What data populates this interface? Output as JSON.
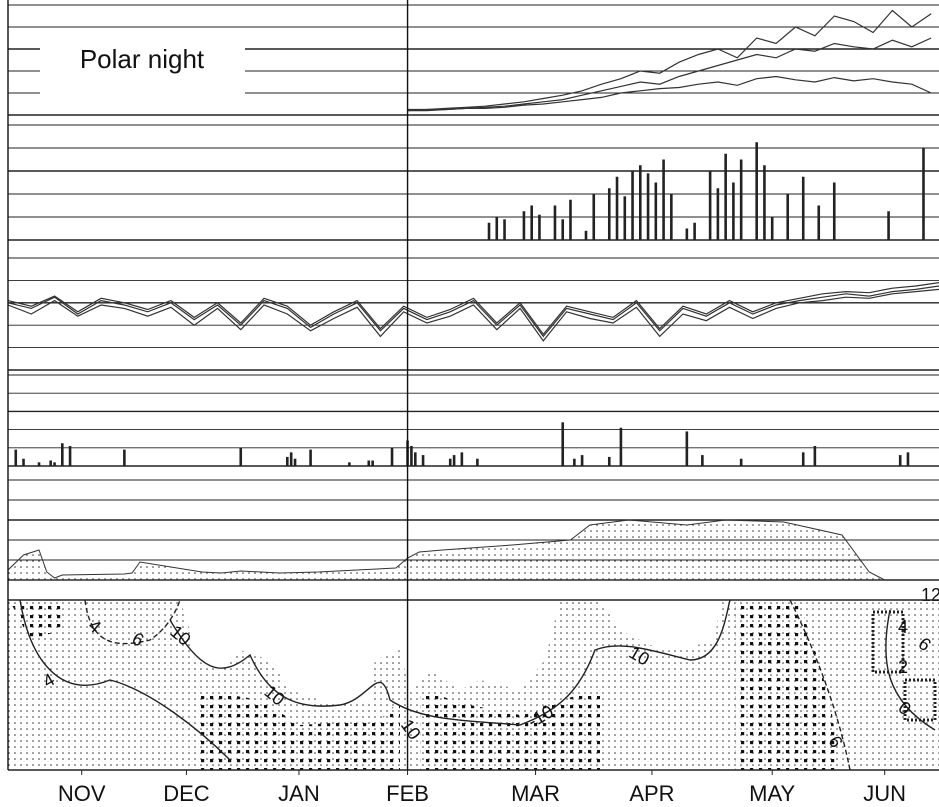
{
  "chart_data": [
    {
      "type": "line",
      "title": "Polar night",
      "xlim": [
        0,
        240
      ],
      "ylim": [
        0,
        100
      ],
      "yticks": [
        0,
        20,
        40,
        60,
        80,
        100
      ],
      "x": [
        103,
        108,
        113,
        118,
        123,
        128,
        133,
        138,
        143,
        148,
        153,
        158,
        163,
        168,
        173,
        178,
        183,
        188,
        193,
        198,
        203,
        208,
        213,
        218,
        223,
        228,
        233,
        238
      ],
      "series": [
        {
          "color": "#333333",
          "values": [
            5,
            5,
            6,
            7,
            8,
            10,
            12,
            15,
            18,
            22,
            28,
            33,
            40,
            38,
            48,
            55,
            60,
            52,
            70,
            65,
            80,
            72,
            90,
            85,
            75,
            95,
            80,
            92
          ]
        },
        {
          "color": "#333333",
          "values": [
            4,
            5,
            5,
            6,
            7,
            8,
            10,
            12,
            14,
            18,
            22,
            26,
            30,
            28,
            35,
            40,
            45,
            50,
            55,
            52,
            60,
            58,
            65,
            62,
            60,
            68,
            62,
            70
          ]
        },
        {
          "color": "#333333",
          "values": [
            4,
            4,
            5,
            6,
            6,
            7,
            9,
            10,
            12,
            14,
            16,
            20,
            22,
            24,
            25,
            28,
            30,
            27,
            33,
            35,
            32,
            30,
            34,
            31,
            33,
            30,
            28,
            20
          ]
        }
      ]
    },
    {
      "type": "bar",
      "xlim": [
        0,
        240
      ],
      "ylim": [
        0,
        100
      ],
      "yticks": [
        0,
        20,
        40,
        60,
        80,
        100
      ],
      "color": "#222222",
      "x": [
        124,
        126,
        128,
        133,
        135,
        137,
        141,
        143,
        145,
        149,
        151,
        155,
        157,
        159,
        161,
        163,
        165,
        167,
        169,
        171,
        175,
        177,
        181,
        183,
        185,
        187,
        189,
        193,
        195,
        197,
        201,
        205,
        209,
        213,
        227,
        236
      ],
      "values": [
        15,
        20,
        18,
        25,
        30,
        22,
        30,
        18,
        35,
        8,
        40,
        45,
        55,
        38,
        60,
        65,
        58,
        50,
        70,
        40,
        10,
        15,
        60,
        45,
        75,
        50,
        70,
        85,
        65,
        20,
        40,
        55,
        30,
        50,
        25,
        80
      ]
    },
    {
      "type": "line",
      "xlim": [
        0,
        240
      ],
      "ylim": [
        0,
        100
      ],
      "yticks": [
        0,
        20,
        40,
        60,
        80,
        100
      ],
      "x": [
        0,
        6,
        12,
        18,
        24,
        30,
        36,
        42,
        48,
        54,
        60,
        66,
        72,
        78,
        84,
        90,
        96,
        102,
        108,
        114,
        120,
        126,
        132,
        138,
        144,
        150,
        156,
        162,
        168,
        174,
        180,
        186,
        192,
        198,
        204,
        210,
        216,
        222,
        228,
        234,
        240
      ],
      "series": [
        {
          "color": "#333333",
          "values": [
            60,
            55,
            65,
            50,
            62,
            58,
            52,
            60,
            45,
            58,
            40,
            62,
            55,
            38,
            50,
            60,
            35,
            55,
            45,
            52,
            62,
            40,
            58,
            30,
            55,
            50,
            45,
            60,
            35,
            55,
            48,
            60,
            50,
            58,
            62,
            65,
            68,
            66,
            70,
            72,
            75
          ]
        },
        {
          "color": "#333333",
          "values": [
            58,
            50,
            62,
            48,
            58,
            55,
            48,
            56,
            40,
            55,
            36,
            58,
            50,
            35,
            46,
            56,
            30,
            52,
            42,
            48,
            58,
            36,
            55,
            26,
            52,
            46,
            42,
            56,
            30,
            50,
            44,
            56,
            46,
            55,
            60,
            62,
            65,
            64,
            68,
            70,
            72
          ]
        },
        {
          "color": "#333333",
          "values": [
            62,
            57,
            66,
            52,
            64,
            60,
            54,
            62,
            47,
            60,
            42,
            64,
            57,
            40,
            52,
            62,
            37,
            57,
            47,
            54,
            64,
            42,
            60,
            32,
            57,
            52,
            47,
            62,
            37,
            57,
            50,
            62,
            52,
            60,
            64,
            68,
            70,
            69,
            73,
            75,
            78
          ]
        }
      ]
    },
    {
      "type": "bar",
      "xlim": [
        0,
        240
      ],
      "ylim": [
        0,
        100
      ],
      "yticks": [
        0,
        20,
        40,
        60,
        80,
        100
      ],
      "color": "#222222",
      "x": [
        2,
        4,
        8,
        11,
        12,
        14,
        16,
        30,
        60,
        72,
        73,
        74,
        78,
        88,
        93,
        94,
        99,
        103,
        104,
        105,
        107,
        114,
        115,
        117,
        121,
        143,
        146,
        148,
        155,
        158,
        175,
        179,
        189,
        205,
        208,
        230,
        232
      ],
      "values": [
        18,
        8,
        4,
        6,
        4,
        25,
        22,
        18,
        20,
        10,
        15,
        8,
        18,
        4,
        6,
        6,
        20,
        28,
        22,
        15,
        12,
        8,
        12,
        15,
        8,
        48,
        8,
        12,
        10,
        42,
        38,
        12,
        8,
        15,
        22,
        12,
        15
      ]
    },
    {
      "type": "area",
      "xlim": [
        0,
        240
      ],
      "ylim": [
        0,
        100
      ],
      "yticks": [
        0,
        20,
        40,
        60,
        80,
        100
      ],
      "color": "#333333",
      "x": [
        0,
        4,
        8,
        10,
        12,
        14,
        30,
        32,
        34,
        50,
        55,
        60,
        70,
        80,
        90,
        100,
        103,
        106,
        112,
        130,
        145,
        150,
        160,
        175,
        185,
        200,
        215,
        222,
        226
      ],
      "values": [
        10,
        25,
        30,
        8,
        2,
        5,
        6,
        7,
        18,
        8,
        7,
        9,
        7,
        8,
        10,
        12,
        22,
        28,
        30,
        35,
        40,
        55,
        60,
        55,
        60,
        58,
        45,
        8,
        0
      ]
    },
    {
      "type": "contour",
      "xlim": [
        0,
        240
      ],
      "xticks": [
        {
          "value": 19,
          "label": "NOV"
        },
        {
          "value": 46,
          "label": "DEC"
        },
        {
          "value": 75,
          "label": "JAN"
        },
        {
          "value": 103,
          "label": "FEB"
        },
        {
          "value": 136,
          "label": "MAR"
        },
        {
          "value": 166,
          "label": "APR"
        },
        {
          "value": 197,
          "label": "MAY"
        },
        {
          "value": 226,
          "label": "JUN"
        }
      ],
      "contour_labels": [
        "4",
        "6",
        "10",
        "4",
        "10",
        "10",
        "-10",
        "10",
        "6",
        "4",
        "6",
        "2",
        "0",
        "12"
      ]
    }
  ]
}
